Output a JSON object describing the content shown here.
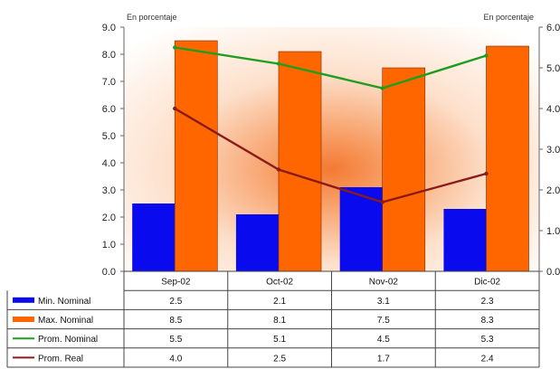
{
  "chart_data": {
    "type": "bar",
    "categories": [
      "Sep-02",
      "Oct-02",
      "Nov-02",
      "Dic-02"
    ],
    "left_unit_label": "En porcentaje",
    "right_unit_label": "En porcentaje",
    "y_left": {
      "ylim": [
        0,
        9
      ],
      "ticks": [
        "0.0",
        "1.0",
        "2.0",
        "3.0",
        "4.0",
        "5.0",
        "6.0",
        "7.0",
        "8.0",
        "9.0"
      ]
    },
    "y_right": {
      "ylim": [
        0,
        6
      ],
      "ticks": [
        "0.0",
        "1.0",
        "2.0",
        "3.0",
        "4.0",
        "5.0",
        "6.0"
      ]
    },
    "series": [
      {
        "name": "Min. Nominal",
        "kind": "bar",
        "axis": "left",
        "color": "#0a0aee",
        "values": [
          2.5,
          2.1,
          3.1,
          2.3
        ],
        "labels": [
          "2.5",
          "2.1",
          "3.1",
          "2.3"
        ]
      },
      {
        "name": "Max. Nominal",
        "kind": "bar",
        "axis": "left",
        "color": "#ff6600",
        "values": [
          8.5,
          8.1,
          7.5,
          8.3
        ],
        "labels": [
          "8.5",
          "8.1",
          "7.5",
          "8.3"
        ]
      },
      {
        "name": "Prom. Nominal",
        "kind": "line",
        "axis": "right",
        "color": "#1e9e1e",
        "values": [
          5.5,
          5.1,
          4.5,
          5.3
        ],
        "labels": [
          "5.5",
          "5.1",
          "4.5",
          "5.3"
        ]
      },
      {
        "name": "Prom. Real",
        "kind": "line",
        "axis": "right",
        "color": "#8b1a1a",
        "values": [
          4.0,
          2.5,
          1.7,
          2.4
        ],
        "labels": [
          "4.0",
          "2.5",
          "1.7",
          "2.4"
        ]
      }
    ],
    "plot_background": "radial gradient, orange to white",
    "grid": false,
    "legend": "data-table-below"
  }
}
